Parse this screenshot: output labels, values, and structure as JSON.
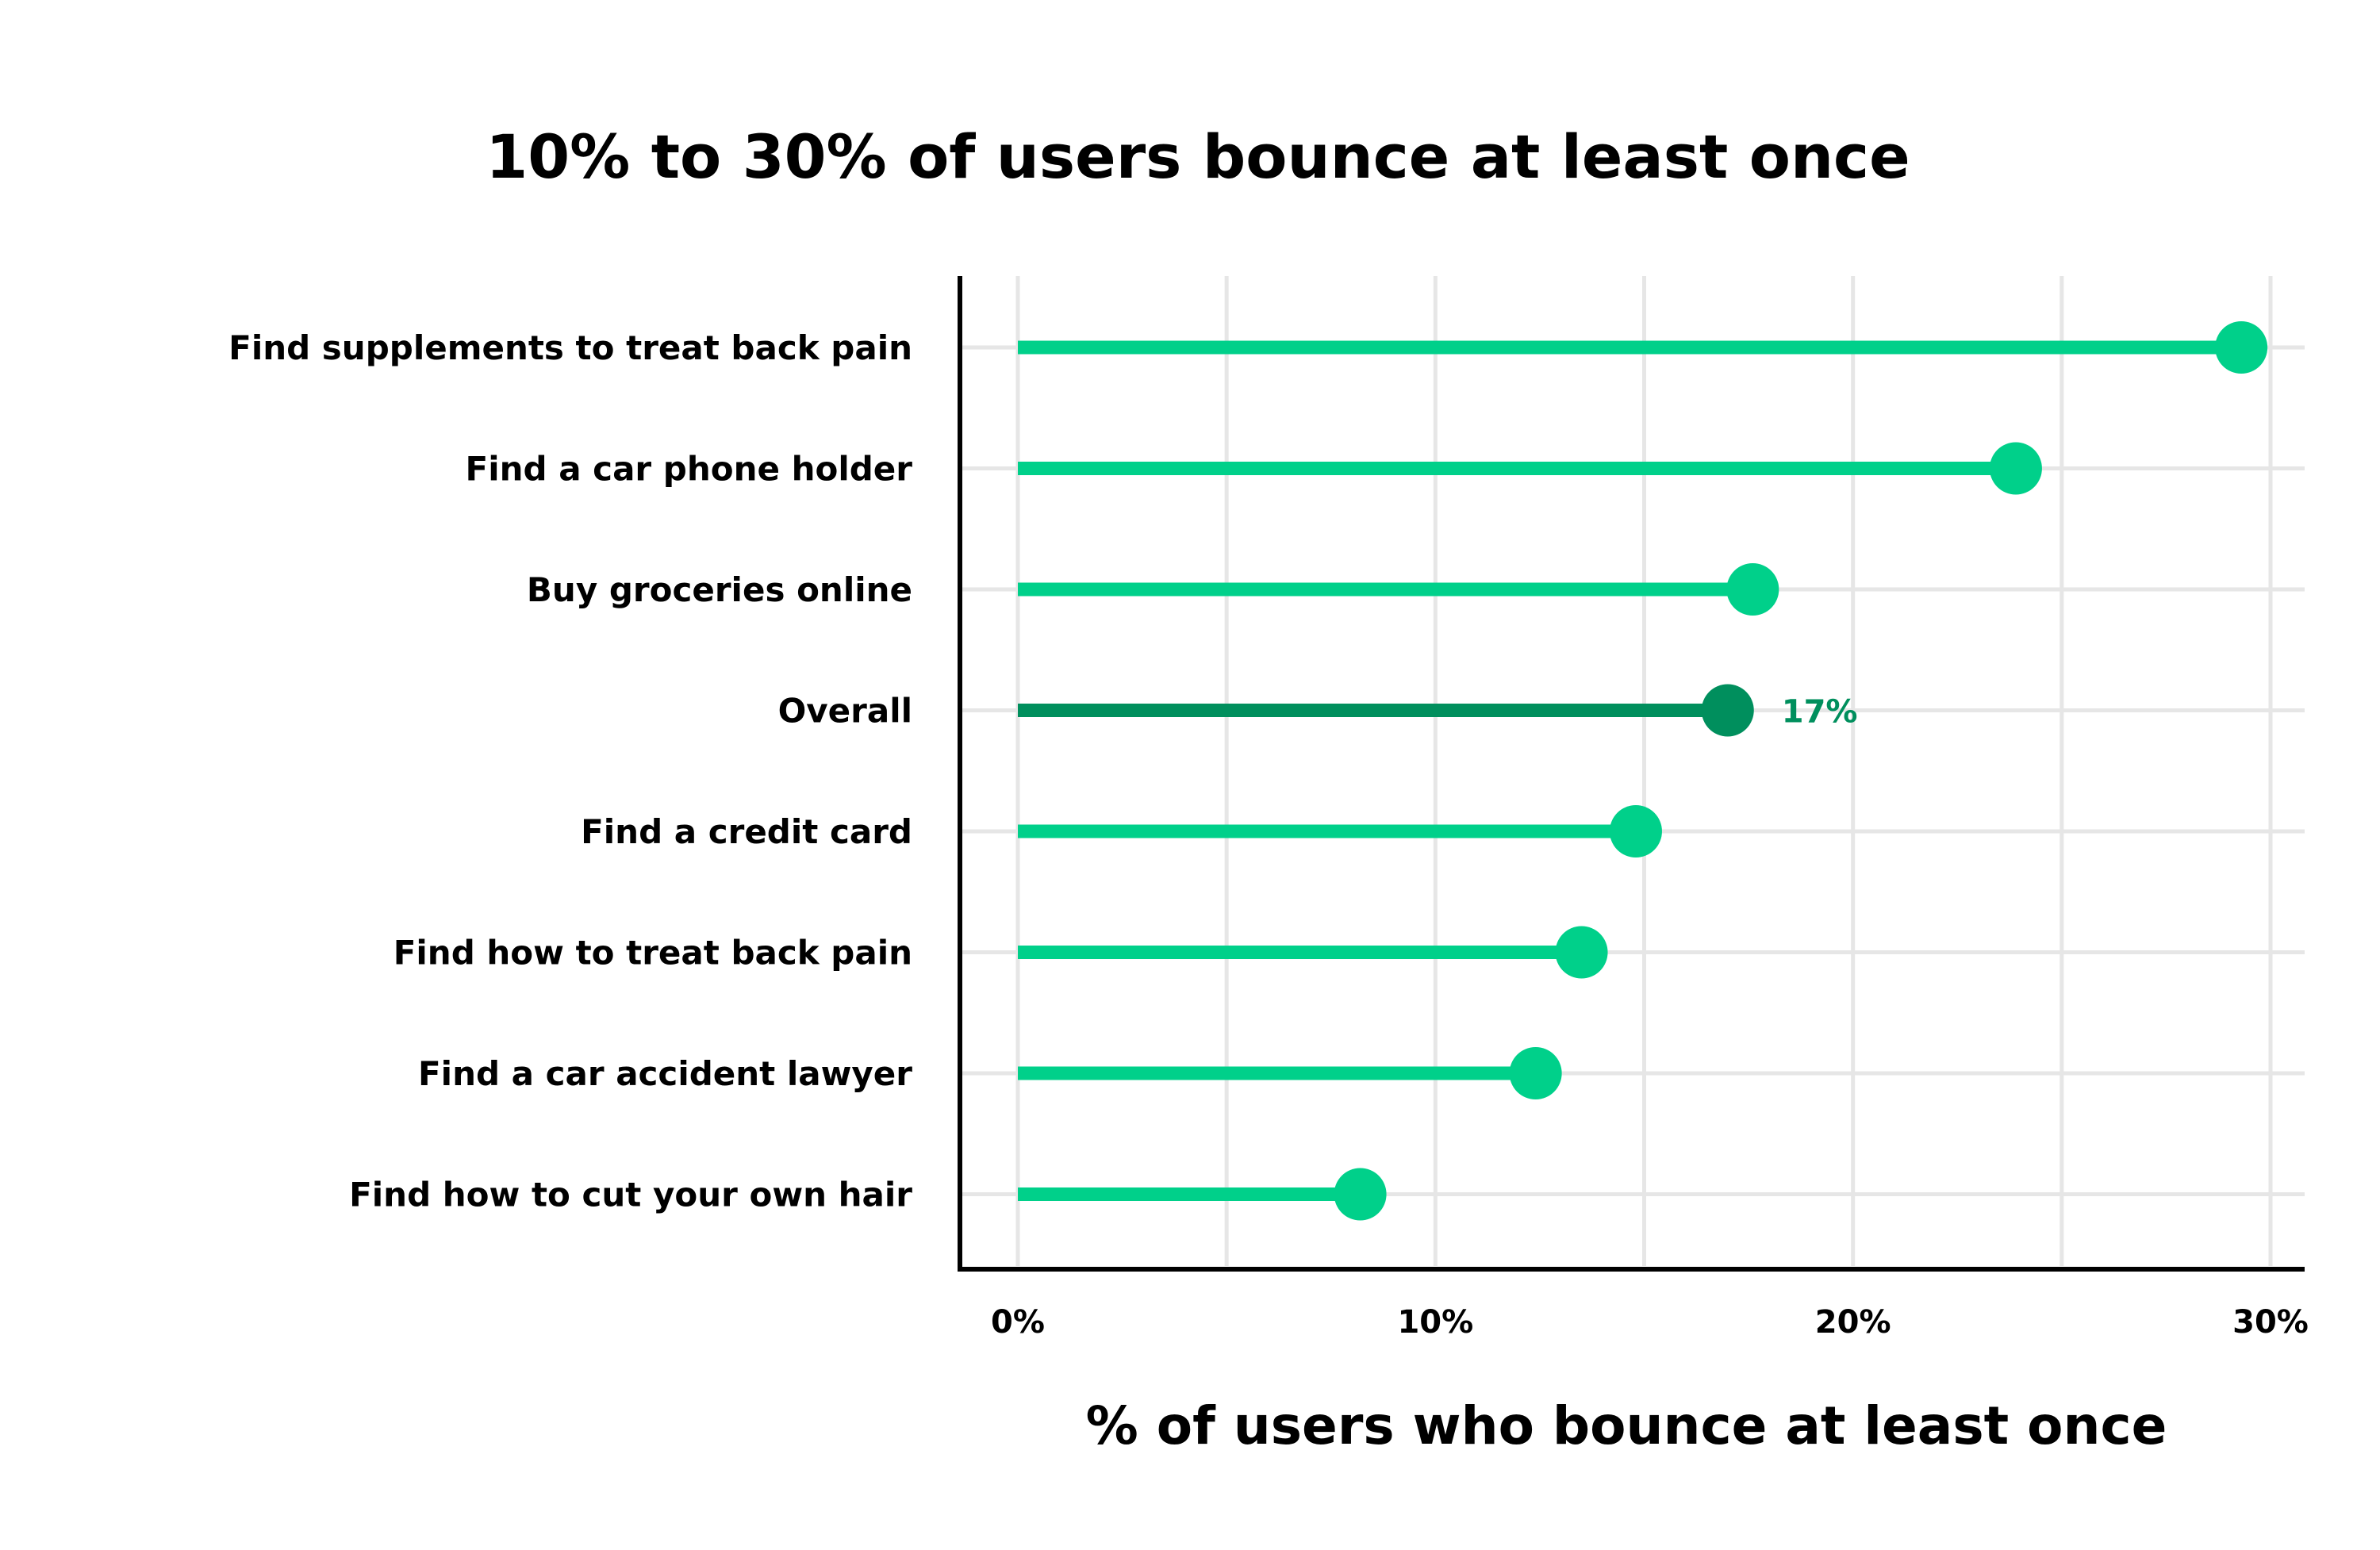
{
  "chart_data": {
    "type": "lollipop",
    "title": "10% to 30% of users bounce at least once",
    "xlabel": "% of users who bounce at least once",
    "ylabel": "",
    "xlim": [
      0,
      30
    ],
    "x_ticks": [
      0,
      10,
      20,
      30
    ],
    "x_tick_labels": [
      "0%",
      "10%",
      "20%",
      "30%"
    ],
    "grid": true,
    "categories": [
      "Find supplements to treat back pain",
      "Find a car phone holder",
      "Buy groceries online",
      "Overall",
      "Find a credit card",
      "Find how to treat back pain",
      "Find a car accident lawyer",
      "Find how to cut your own hair"
    ],
    "values": [
      29.3,
      23.9,
      17.6,
      17,
      14.8,
      13.5,
      12.4,
      8.2
    ],
    "highlight": {
      "category": "Overall",
      "label": "17%"
    },
    "colors": {
      "primary": "#00d08a",
      "highlight": "#008f5d",
      "grid": "#e6e6e6",
      "axis": "#000000"
    }
  }
}
